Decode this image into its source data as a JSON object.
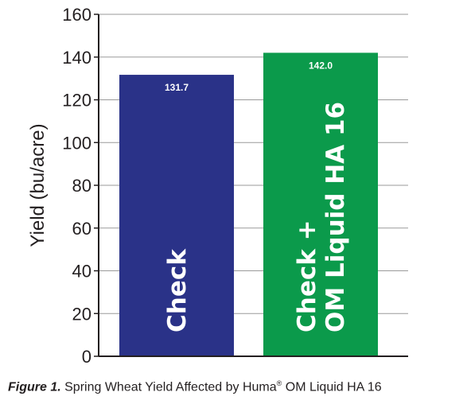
{
  "chart_data": {
    "type": "bar",
    "categories": [
      "Check",
      "Check + OM Liquid HA 16"
    ],
    "category_lines": [
      [
        "Check"
      ],
      [
        "Check +",
        "OM Liquid HA 16"
      ]
    ],
    "values": [
      131.7,
      142.0
    ],
    "value_labels": [
      "131.7",
      "142.0"
    ],
    "bar_colors": [
      "#2a3288",
      "#0b9a4b"
    ],
    "ylabel": "Yield (bu/acre)",
    "xlabel": "",
    "ylim": [
      0,
      160
    ],
    "yticks": [
      0,
      20,
      40,
      60,
      80,
      100,
      120,
      140,
      160
    ],
    "grid": true
  },
  "caption": {
    "figure_label": "Figure 1.",
    "text_before": " Spring Wheat Yield Affected by Huma",
    "registered_mark": "®",
    "text_after": " OM Liquid HA 16"
  }
}
